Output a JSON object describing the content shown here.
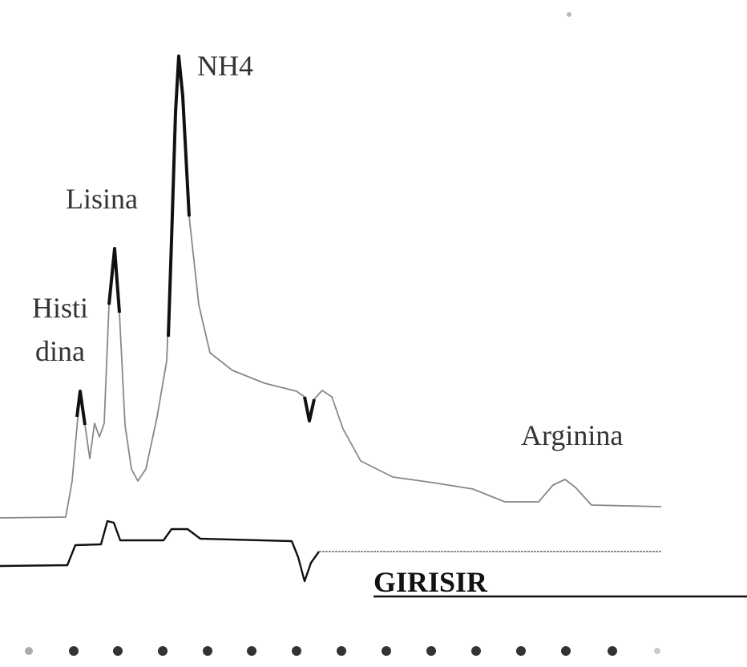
{
  "peak_labels": [
    "NH4",
    "Lisina",
    "Histi",
    "dina",
    "Arginina"
  ],
  "baseline_label": "GIRISIR"
}
